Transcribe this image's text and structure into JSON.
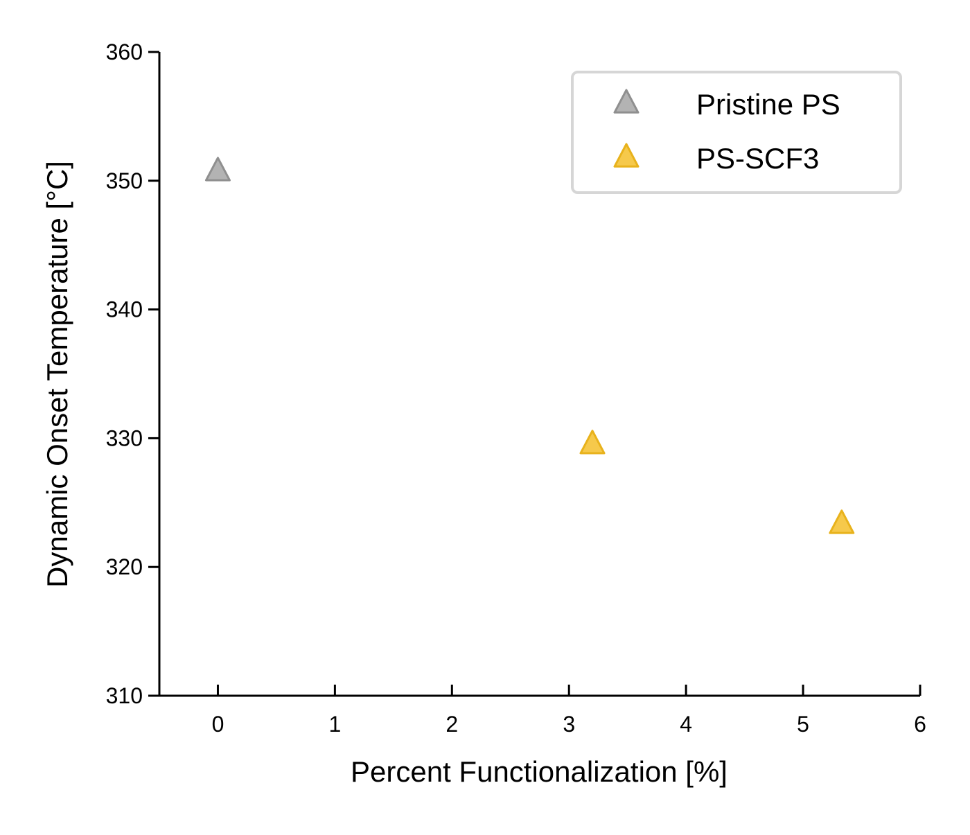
{
  "chart_data": {
    "type": "scatter",
    "title": "",
    "xlabel": "Percent Functionalization [%]",
    "ylabel": "Dynamic Onset Temperature [°C]",
    "xlim": [
      -0.5,
      6
    ],
    "ylim": [
      310,
      360
    ],
    "xticks": [
      0,
      1,
      2,
      3,
      4,
      5,
      6
    ],
    "yticks": [
      310,
      320,
      330,
      340,
      350,
      360
    ],
    "grid": false,
    "legend_position": "top-right",
    "marker": "triangle-up",
    "series": [
      {
        "name": "Pristine PS",
        "color": "#a6a6a6",
        "points": [
          {
            "x": 0,
            "y": 350.7
          }
        ]
      },
      {
        "name": "PS-SCF3",
        "color": "#f5c02b",
        "points": [
          {
            "x": 3.2,
            "y": 329.5
          },
          {
            "x": 5.33,
            "y": 323.3
          }
        ]
      }
    ]
  }
}
